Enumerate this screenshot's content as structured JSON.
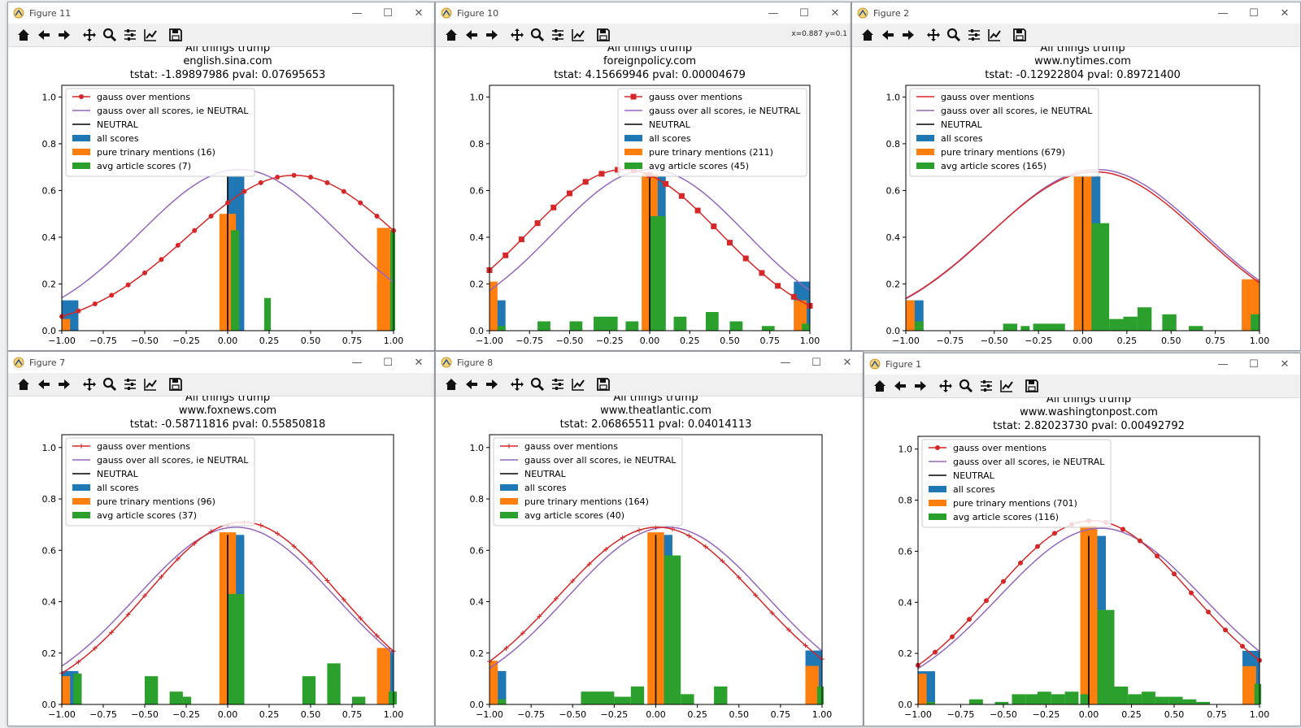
{
  "colors": {
    "blue": "#1f77b4",
    "orange": "#ff7f0e",
    "green": "#2ca02c",
    "red": "#d62728",
    "purple": "#9467bd",
    "black": "#000000"
  },
  "toolbar_icons": [
    "home-icon",
    "back-arrow-icon",
    "forward-arrow-icon",
    "pan-icon",
    "zoom-icon",
    "configure-subplots-icon",
    "edit-axes-icon",
    "save-icon"
  ],
  "window_controls": {
    "minimize": "—",
    "maximize": "☐",
    "close": "✕"
  },
  "windows": [
    {
      "title": "Figure 11",
      "coords": ""
    },
    {
      "title": "Figure 10",
      "coords": "x=0.887 y=0.1"
    },
    {
      "title": "Figure 2",
      "coords": ""
    },
    {
      "title": "Figure 7",
      "coords": ""
    },
    {
      "title": "Figure 8",
      "coords": ""
    },
    {
      "title": "Figure 1",
      "coords": ""
    }
  ],
  "chart_data": [
    {
      "type": "bar+line",
      "title": "All things trump",
      "subtitle": "english.sina.com",
      "stats": "tstat: -1.89897986    pval: 0.07695653",
      "xlim": [
        -1,
        1
      ],
      "ylim": [
        0,
        1.05
      ],
      "xticks": [
        "−1.00",
        "−0.75",
        "−0.50",
        "−0.25",
        "0.00",
        "0.25",
        "0.50",
        "0.75",
        "1.00"
      ],
      "yticks": [
        "0.0",
        "0.2",
        "0.4",
        "0.6",
        "0.8",
        "1.0"
      ],
      "legend_location": "upper-left",
      "gauss_marker": "dot",
      "gauss_mentions": {
        "mu": 0.4,
        "sigma": 0.64,
        "peak": 0.665
      },
      "gauss_all": {
        "mu": 0.07,
        "sigma": 0.6,
        "peak": 0.69
      },
      "legend": [
        "gauss over mentions",
        "gauss over all scores, ie NEUTRAL",
        "NEUTRAL",
        "all scores",
        "pure trinary mentions (16)",
        "avg article scores (7)"
      ],
      "all_scores": [
        {
          "x": -1.0,
          "w": 0.1,
          "h": 0.13
        },
        {
          "x": 0.0,
          "w": 0.1,
          "h": 0.66
        },
        {
          "x": 0.9,
          "w": 0.1,
          "h": 0.21
        }
      ],
      "trinary": [
        {
          "x": -1.0,
          "w": 0.05,
          "h": 0.05
        },
        {
          "x": -0.05,
          "w": 0.1,
          "h": 0.5
        },
        {
          "x": 0.9,
          "w": 0.08,
          "h": 0.44
        }
      ],
      "avg_scores": [
        {
          "x": 0.02,
          "w": 0.05,
          "h": 0.43
        },
        {
          "x": 0.22,
          "w": 0.04,
          "h": 0.14
        },
        {
          "x": 0.98,
          "w": 0.03,
          "h": 0.43
        }
      ]
    },
    {
      "type": "bar+line",
      "title": "All things trump",
      "subtitle": "foreignpolicy.com",
      "stats": "tstat: 4.15669946    pval: 0.00004679",
      "xlim": [
        -1,
        1
      ],
      "ylim": [
        0,
        1.05
      ],
      "xticks": [
        "−1.00",
        "−0.75",
        "−0.50",
        "−0.25",
        "0.00",
        "0.25",
        "0.50",
        "0.75",
        "1.00"
      ],
      "yticks": [
        "0.0",
        "0.2",
        "0.4",
        "0.6",
        "0.8",
        "1.0"
      ],
      "legend_location": "upper-right",
      "gauss_marker": "square",
      "gauss_mentions": {
        "mu": -0.16,
        "sigma": 0.6,
        "peak": 0.69
      },
      "gauss_all": {
        "mu": 0.0,
        "sigma": 0.6,
        "peak": 0.69
      },
      "legend": [
        "gauss over mentions",
        "gauss over all scores, ie NEUTRAL",
        "NEUTRAL",
        "all scores",
        "pure trinary mentions (211)",
        "avg article scores (45)"
      ],
      "all_scores": [
        {
          "x": -1.0,
          "w": 0.1,
          "h": 0.13
        },
        {
          "x": 0.0,
          "w": 0.1,
          "h": 0.66
        },
        {
          "x": 0.9,
          "w": 0.1,
          "h": 0.21
        }
      ],
      "trinary": [
        {
          "x": -1.0,
          "w": 0.05,
          "h": 0.21
        },
        {
          "x": -0.05,
          "w": 0.1,
          "h": 0.67
        },
        {
          "x": 0.9,
          "w": 0.08,
          "h": 0.13
        }
      ],
      "avg_scores": [
        {
          "x": -0.95,
          "w": 0.05,
          "h": 0.02
        },
        {
          "x": -0.7,
          "w": 0.08,
          "h": 0.04
        },
        {
          "x": -0.5,
          "w": 0.08,
          "h": 0.04
        },
        {
          "x": -0.35,
          "w": 0.15,
          "h": 0.06
        },
        {
          "x": -0.15,
          "w": 0.08,
          "h": 0.04
        },
        {
          "x": 0.0,
          "w": 0.1,
          "h": 0.49
        },
        {
          "x": 0.15,
          "w": 0.08,
          "h": 0.06
        },
        {
          "x": 0.35,
          "w": 0.08,
          "h": 0.08
        },
        {
          "x": 0.5,
          "w": 0.08,
          "h": 0.04
        },
        {
          "x": 0.7,
          "w": 0.08,
          "h": 0.02
        },
        {
          "x": 0.95,
          "w": 0.05,
          "h": 0.03
        }
      ]
    },
    {
      "type": "bar+line",
      "title": "All things trump",
      "subtitle": "www.nytimes.com",
      "stats": "tstat: -0.12922804    pval: 0.89721400",
      "xlim": [
        -1,
        1
      ],
      "ylim": [
        0,
        1.05
      ],
      "xticks": [
        "−1.00",
        "−0.75",
        "−0.50",
        "−0.25",
        "0.00",
        "0.25",
        "0.50",
        "0.75",
        "1.00"
      ],
      "yticks": [
        "0.0",
        "0.2",
        "0.4",
        "0.6",
        "0.8",
        "1.0"
      ],
      "legend_location": "upper-left",
      "gauss_marker": "none",
      "gauss_mentions": {
        "mu": 0.07,
        "sigma": 0.6,
        "peak": 0.68
      },
      "gauss_all": {
        "mu": 0.08,
        "sigma": 0.6,
        "peak": 0.69
      },
      "legend": [
        "gauss over mentions",
        "gauss over all scores, ie NEUTRAL",
        "NEUTRAL",
        "all scores",
        "pure trinary mentions (679)",
        "avg article scores (165)"
      ],
      "all_scores": [
        {
          "x": -1.0,
          "w": 0.1,
          "h": 0.13
        },
        {
          "x": 0.0,
          "w": 0.1,
          "h": 0.66
        },
        {
          "x": 0.9,
          "w": 0.1,
          "h": 0.21
        }
      ],
      "trinary": [
        {
          "x": -1.0,
          "w": 0.05,
          "h": 0.13
        },
        {
          "x": -0.05,
          "w": 0.1,
          "h": 0.66
        },
        {
          "x": 0.9,
          "w": 0.1,
          "h": 0.22
        }
      ],
      "avg_scores": [
        {
          "x": -0.95,
          "w": 0.05,
          "h": 0.04
        },
        {
          "x": -0.45,
          "w": 0.08,
          "h": 0.03
        },
        {
          "x": -0.35,
          "w": 0.05,
          "h": 0.02
        },
        {
          "x": -0.28,
          "w": 0.18,
          "h": 0.03
        },
        {
          "x": 0.05,
          "w": 0.1,
          "h": 0.46
        },
        {
          "x": 0.15,
          "w": 0.08,
          "h": 0.05
        },
        {
          "x": 0.23,
          "w": 0.08,
          "h": 0.06
        },
        {
          "x": 0.31,
          "w": 0.08,
          "h": 0.1
        },
        {
          "x": 0.45,
          "w": 0.08,
          "h": 0.07
        },
        {
          "x": 0.6,
          "w": 0.08,
          "h": 0.02
        },
        {
          "x": 0.95,
          "w": 0.05,
          "h": 0.07
        }
      ]
    },
    {
      "type": "bar+line",
      "title": "All things trump",
      "subtitle": "www.foxnews.com",
      "stats": "tstat: -0.58711816    pval: 0.55850818",
      "xlim": [
        -1,
        1
      ],
      "ylim": [
        0,
        1.05
      ],
      "xticks": [
        "−1.00",
        "−0.75",
        "−0.50",
        "−0.25",
        "0.00",
        "0.25",
        "0.50",
        "0.75",
        "1.00"
      ],
      "yticks": [
        "0.0",
        "0.2",
        "0.4",
        "0.6",
        "0.8",
        "1.0"
      ],
      "legend_location": "upper-left",
      "gauss_marker": "plus",
      "gauss_mentions": {
        "mu": 0.09,
        "sigma": 0.58,
        "peak": 0.71
      },
      "gauss_all": {
        "mu": 0.05,
        "sigma": 0.6,
        "peak": 0.69
      },
      "legend": [
        "gauss over mentions",
        "gauss over all scores, ie NEUTRAL",
        "NEUTRAL",
        "all scores",
        "pure trinary mentions (96)",
        "avg article scores (37)"
      ],
      "all_scores": [
        {
          "x": -1.0,
          "w": 0.1,
          "h": 0.13
        },
        {
          "x": 0.0,
          "w": 0.1,
          "h": 0.66
        },
        {
          "x": 0.9,
          "w": 0.1,
          "h": 0.21
        }
      ],
      "trinary": [
        {
          "x": -1.0,
          "w": 0.05,
          "h": 0.11
        },
        {
          "x": -0.05,
          "w": 0.1,
          "h": 0.67
        },
        {
          "x": 0.9,
          "w": 0.08,
          "h": 0.22
        }
      ],
      "avg_scores": [
        {
          "x": -0.93,
          "w": 0.05,
          "h": 0.12
        },
        {
          "x": -0.5,
          "w": 0.08,
          "h": 0.11
        },
        {
          "x": -0.35,
          "w": 0.08,
          "h": 0.05
        },
        {
          "x": -0.27,
          "w": 0.05,
          "h": 0.03
        },
        {
          "x": 0.0,
          "w": 0.1,
          "h": 0.43
        },
        {
          "x": 0.45,
          "w": 0.08,
          "h": 0.11
        },
        {
          "x": 0.6,
          "w": 0.08,
          "h": 0.16
        },
        {
          "x": 0.75,
          "w": 0.08,
          "h": 0.03
        },
        {
          "x": 0.97,
          "w": 0.05,
          "h": 0.05
        }
      ]
    },
    {
      "type": "bar+line",
      "title": "All things trump",
      "subtitle": "www.theatlantic.com",
      "stats": "tstat: 2.06865511    pval: 0.04014113",
      "xlim": [
        -1,
        1
      ],
      "ylim": [
        0,
        1.05
      ],
      "xticks": [
        "−1.00",
        "−0.75",
        "−0.50",
        "−0.25",
        "0.00",
        "0.25",
        "0.50",
        "0.75",
        "1.00"
      ],
      "yticks": [
        "0.0",
        "0.2",
        "0.4",
        "0.6",
        "0.8",
        "1.0"
      ],
      "legend_location": "upper-left",
      "gauss_marker": "plus",
      "gauss_mentions": {
        "mu": 0.01,
        "sigma": 0.6,
        "peak": 0.69
      },
      "gauss_all": {
        "mu": 0.07,
        "sigma": 0.6,
        "peak": 0.69
      },
      "legend": [
        "gauss over mentions",
        "gauss over all scores, ie NEUTRAL",
        "NEUTRAL",
        "all scores",
        "pure trinary mentions (164)",
        "avg article scores (40)"
      ],
      "all_scores": [
        {
          "x": -1.0,
          "w": 0.1,
          "h": 0.13
        },
        {
          "x": 0.0,
          "w": 0.1,
          "h": 0.66
        },
        {
          "x": 0.9,
          "w": 0.1,
          "h": 0.21
        }
      ],
      "trinary": [
        {
          "x": -1.0,
          "w": 0.05,
          "h": 0.17
        },
        {
          "x": -0.05,
          "w": 0.1,
          "h": 0.67
        },
        {
          "x": 0.9,
          "w": 0.08,
          "h": 0.15
        }
      ],
      "avg_scores": [
        {
          "x": -0.95,
          "w": 0.05,
          "h": 0.02
        },
        {
          "x": -0.45,
          "w": 0.2,
          "h": 0.05
        },
        {
          "x": -0.25,
          "w": 0.1,
          "h": 0.03
        },
        {
          "x": -0.15,
          "w": 0.08,
          "h": 0.07
        },
        {
          "x": 0.05,
          "w": 0.1,
          "h": 0.58
        },
        {
          "x": 0.15,
          "w": 0.08,
          "h": 0.04
        },
        {
          "x": 0.35,
          "w": 0.08,
          "h": 0.07
        },
        {
          "x": 0.97,
          "w": 0.04,
          "h": 0.07
        }
      ]
    },
    {
      "type": "bar+line",
      "title": "All things trump",
      "subtitle": "www.washingtonpost.com",
      "stats": "tstat: 2.82023730    pval: 0.00492792",
      "xlim": [
        -1,
        1
      ],
      "ylim": [
        0,
        1.05
      ],
      "xticks": [
        "−1.00",
        "−0.75",
        "−0.50",
        "−0.25",
        "0.00",
        "0.25",
        "0.50",
        "0.75",
        "1.00"
      ],
      "yticks": [
        "0.0",
        "0.2",
        "0.4",
        "0.6",
        "0.8",
        "1.0"
      ],
      "legend_location": "upper-left",
      "gauss_marker": "dot",
      "gauss_mentions": {
        "mu": 0.02,
        "sigma": 0.58,
        "peak": 0.72
      },
      "gauss_all": {
        "mu": 0.07,
        "sigma": 0.6,
        "peak": 0.69
      },
      "legend": [
        "gauss over mentions",
        "gauss over all scores, ie NEUTRAL",
        "NEUTRAL",
        "all scores",
        "pure trinary mentions (701)",
        "avg article scores (116)"
      ],
      "all_scores": [
        {
          "x": -1.0,
          "w": 0.1,
          "h": 0.13
        },
        {
          "x": 0.0,
          "w": 0.1,
          "h": 0.66
        },
        {
          "x": 0.9,
          "w": 0.1,
          "h": 0.21
        }
      ],
      "trinary": [
        {
          "x": -1.0,
          "w": 0.05,
          "h": 0.12
        },
        {
          "x": -0.05,
          "w": 0.1,
          "h": 0.7
        },
        {
          "x": 0.9,
          "w": 0.08,
          "h": 0.15
        }
      ],
      "avg_scores": [
        {
          "x": -0.95,
          "w": 0.05,
          "h": 0.01
        },
        {
          "x": -0.7,
          "w": 0.08,
          "h": 0.02
        },
        {
          "x": -0.55,
          "w": 0.08,
          "h": 0.01
        },
        {
          "x": -0.45,
          "w": 0.08,
          "h": 0.04
        },
        {
          "x": -0.37,
          "w": 0.08,
          "h": 0.04
        },
        {
          "x": -0.3,
          "w": 0.08,
          "h": 0.05
        },
        {
          "x": -0.22,
          "w": 0.08,
          "h": 0.04
        },
        {
          "x": -0.14,
          "w": 0.08,
          "h": 0.05
        },
        {
          "x": -0.05,
          "w": 0.05,
          "h": 0.04
        },
        {
          "x": 0.05,
          "w": 0.1,
          "h": 0.37
        },
        {
          "x": 0.15,
          "w": 0.08,
          "h": 0.07
        },
        {
          "x": 0.23,
          "w": 0.08,
          "h": 0.04
        },
        {
          "x": 0.31,
          "w": 0.08,
          "h": 0.05
        },
        {
          "x": 0.39,
          "w": 0.08,
          "h": 0.03
        },
        {
          "x": 0.47,
          "w": 0.08,
          "h": 0.03
        },
        {
          "x": 0.55,
          "w": 0.08,
          "h": 0.02
        },
        {
          "x": 0.63,
          "w": 0.08,
          "h": 0.01
        },
        {
          "x": 0.97,
          "w": 0.04,
          "h": 0.08
        }
      ]
    }
  ]
}
